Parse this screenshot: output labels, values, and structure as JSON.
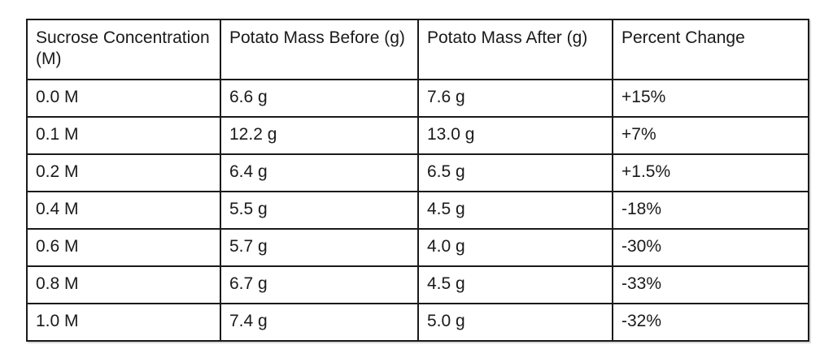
{
  "table": {
    "columns": [
      "Sucrose Concentration (M)",
      "Potato Mass Before (g)",
      "Potato Mass After (g)",
      "Percent Change"
    ],
    "rows": [
      [
        "0.0 M",
        "6.6 g",
        "7.6 g",
        "+15%"
      ],
      [
        "0.1 M",
        "12.2 g",
        "13.0 g",
        "+7%"
      ],
      [
        "0.2 M",
        "6.4 g",
        "6.5 g",
        "+1.5%"
      ],
      [
        "0.4 M",
        "5.5 g",
        "4.5 g",
        "-18%"
      ],
      [
        "0.6 M",
        "5.7 g",
        "4.0 g",
        "-30%"
      ],
      [
        "0.8 M",
        "6.7 g",
        "4.5 g",
        "-33%"
      ],
      [
        "1.0 M",
        "7.4 g",
        "5.0 g",
        "-32%"
      ]
    ],
    "colors": {
      "border": "#1a1a1a",
      "text": "#1a1a1a",
      "background": "#ffffff"
    }
  }
}
